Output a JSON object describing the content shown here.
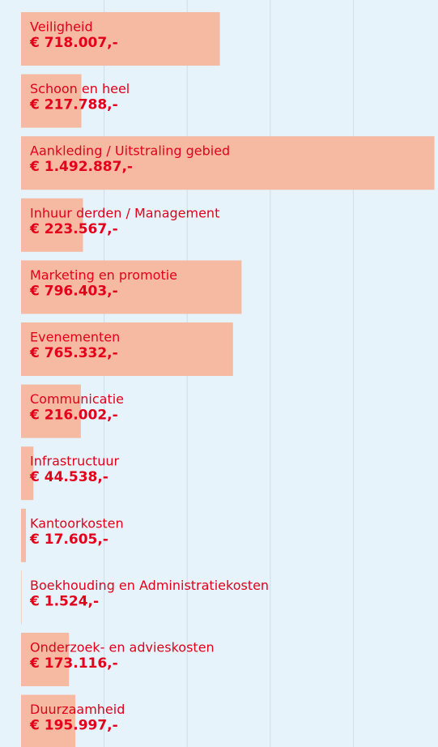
{
  "chart_data": {
    "type": "hbar",
    "categories": [
      "Veiligheid",
      "Schoon en heel",
      "Aankleding / Uitstraling gebied",
      "Inhuur derden / Management",
      "Marketing en promotie",
      "Evenementen",
      "Communicatie",
      "Infrastructuur",
      "Kantoorkosten",
      "Boekhouding en Administratiekosten",
      "Onderzoek- en advieskosten",
      "Duurzaamheid"
    ],
    "values": [
      718007,
      217788,
      1492887,
      223567,
      796403,
      765332,
      216002,
      44538,
      17605,
      1524,
      173116,
      195997
    ],
    "value_labels": [
      "€ 718.007,-",
      "€ 217.788,-",
      "€ 1.492.887,-",
      "€ 223.567,-",
      "€ 796.403,-",
      "€ 765.332,-",
      "€ 216.002,-",
      "€ 44.538,-",
      "€ 17.605,-",
      "€ 1.524,-",
      "€ 173.116,-",
      "€ 195.997,-"
    ],
    "color": "#f6b9a1",
    "xlim": [
      0,
      1500000
    ],
    "xticks": [
      300000,
      600000,
      900000,
      1200000
    ],
    "grid": true
  }
}
